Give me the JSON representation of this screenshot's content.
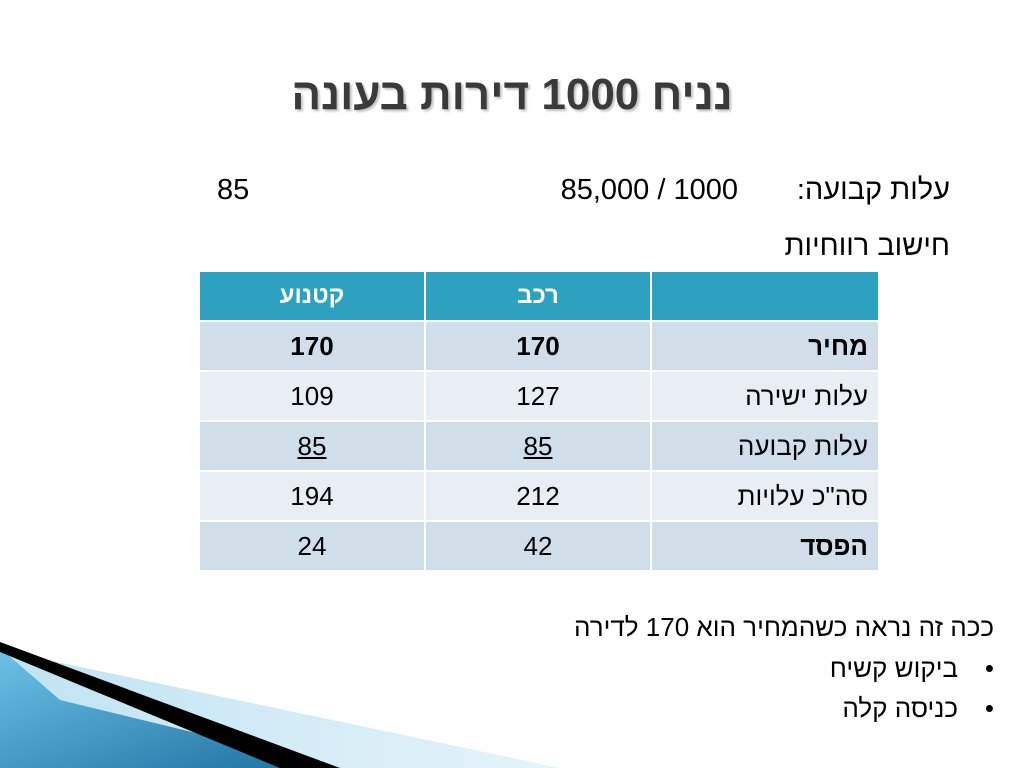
{
  "title": "נניח 1000 דירות בעונה",
  "fixed_cost": {
    "label": "עלות קבועה:",
    "calc": "85,000 / 1000",
    "result": "85"
  },
  "profit_heading": "חישוב רווחיות",
  "table": {
    "headers": [
      "",
      "רכב",
      "קטנוע"
    ],
    "rows": [
      {
        "label": "מחיר",
        "car": "170",
        "scooter": "170"
      },
      {
        "label": "עלות ישירה",
        "car": "127",
        "scooter": "109"
      },
      {
        "label": "עלות קבועה",
        "car": "85",
        "scooter": "85"
      },
      {
        "label": "סה\"כ עלויות",
        "car": "212",
        "scooter": "194"
      },
      {
        "label": "הפסד",
        "car": "42",
        "scooter": "24"
      }
    ]
  },
  "note": "ככה זה נראה כשהמחיר הוא 170 לדירה",
  "bullets": [
    "ביקוש קשיח",
    "כניסה קלה"
  ],
  "colors": {
    "header_bg": "#2ea0c0",
    "row_dark": "#cfdee9",
    "row_light": "#e8eef4",
    "title_text": "#3a3a3a"
  }
}
